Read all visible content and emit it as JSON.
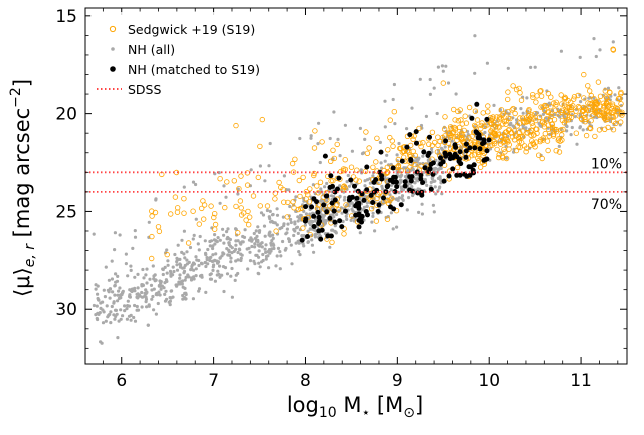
{
  "chart_data": {
    "type": "scatter",
    "title": "",
    "xlabel": "log10 M⋆ [M⊙]",
    "xlabel_parts": {
      "base": "log",
      "sub": "10",
      "rest": " M",
      "sub2": "⋆",
      "tail": " [M",
      "sub3": "⊙",
      "close": "]"
    },
    "ylabel": "⟨μ⟩e,r [mag arcsec⁻²]",
    "ylabel_parts": {
      "base": "⟨μ⟩",
      "sub": "e, r",
      "rest": " [mag arcsec",
      "sup": "−2",
      "close": "]"
    },
    "xlim": [
      5.6,
      11.5
    ],
    "ylim": [
      32.8,
      14.6
    ],
    "y_inverted": true,
    "grid": false,
    "legend_position": "top-left",
    "x_ticks": [
      6,
      7,
      8,
      9,
      10,
      11
    ],
    "x_tick_labels": [
      "6",
      "7",
      "8",
      "9",
      "10",
      "11"
    ],
    "y_ticks": [
      15,
      20,
      25,
      30
    ],
    "y_tick_labels": [
      "15",
      "20",
      "25",
      "30"
    ],
    "series": [
      {
        "name": "Sedgwick +19 (S19)",
        "marker": "open-circle",
        "color": "#FFA500",
        "count": 700,
        "x_range": [
          6.3,
          11.45
        ],
        "trend": "denser at high mass, mu ~ 22 at 9 to ~20 at 11"
      },
      {
        "name": "NH (all)",
        "marker": "small-dot",
        "color": "#A9A9A9",
        "count": 1400,
        "x_range": [
          5.7,
          11.45
        ],
        "trend": "mu ~ 29.5 at 6 to ~20 at 11"
      },
      {
        "name": "NH (matched to S19)",
        "marker": "filled-circle",
        "color": "#000000",
        "count": 180,
        "x_range": [
          7.95,
          10.0
        ]
      },
      {
        "name": "SDSS",
        "marker": "dotted-line",
        "color": "#FF0000"
      }
    ],
    "hlines": [
      {
        "y": 23.0,
        "color": "#FF4444",
        "style": "dotted",
        "label": "10%"
      },
      {
        "y": 24.0,
        "color": "#FF4444",
        "style": "dotted",
        "label": "70%"
      }
    ]
  }
}
